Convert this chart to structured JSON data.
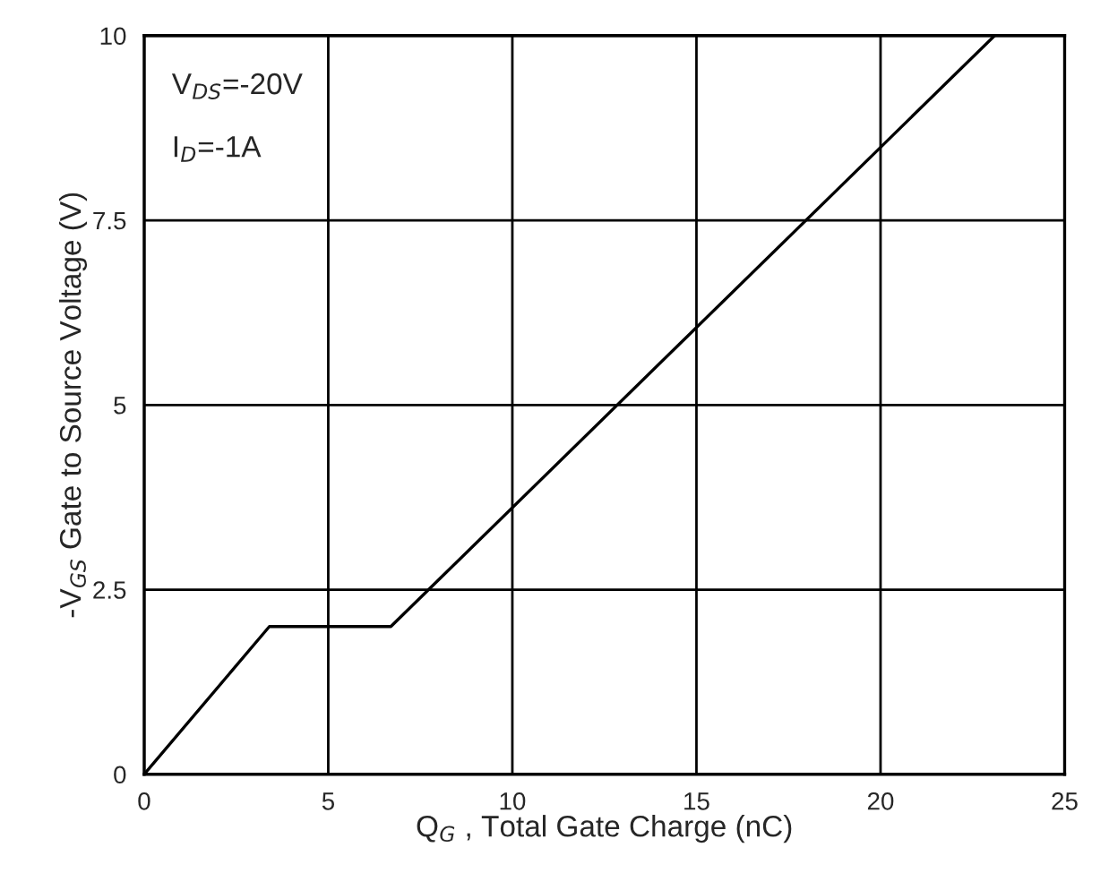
{
  "chart_data": {
    "type": "line",
    "x": [
      0,
      3.4,
      6.7,
      23.1
    ],
    "series": [
      {
        "color": "#000000",
        "values": [
          0,
          2.0,
          2.0,
          10
        ]
      }
    ],
    "xlabel": "Q$_{G}$ , Total Gate Charge (nC)",
    "ylabel": "-V$_{GS}$ Gate to Source Voltage (V)",
    "annotations": [
      "V$_{DS}$=-20V",
      "I$_{D}$=-1A"
    ],
    "xlim": [
      0,
      25
    ],
    "ylim": [
      0,
      10
    ],
    "xticks": [
      0,
      5,
      10,
      15,
      20,
      25
    ],
    "yticks": [
      0,
      2.5,
      5,
      7.5,
      10
    ],
    "grid": true,
    "legend": false,
    "marker": "none",
    "line_style": "solid"
  }
}
